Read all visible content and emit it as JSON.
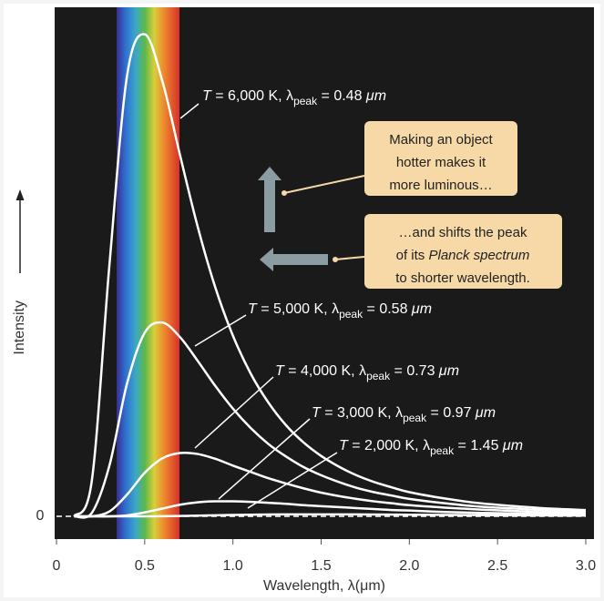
{
  "chart_data": {
    "type": "line",
    "xlabel": "Wavelength, λ(μm)",
    "ylabel": "Intensity",
    "xlim": [
      0,
      3.0
    ],
    "ylim": [
      0,
      1.05
    ],
    "xticks": [
      0,
      {
        "value": 0.5,
        "label": "0.5"
      },
      {
        "value": 1.0,
        "label": "1.0"
      },
      {
        "value": 1.5,
        "label": "1.5"
      },
      {
        "value": 2.0,
        "label": "2.0"
      },
      {
        "value": 2.5,
        "label": "2.5"
      },
      {
        "value": 3.0,
        "label": "3.0"
      }
    ],
    "yticks": [
      0
    ],
    "x": [
      0.1,
      0.2,
      0.3,
      0.4,
      0.5,
      0.6,
      0.7,
      0.8,
      0.9,
      1.0,
      1.1,
      1.2,
      1.3,
      1.4,
      1.5,
      1.6,
      1.7,
      1.8,
      1.9,
      2.0,
      2.2,
      2.4,
      2.6,
      2.8,
      3.0
    ],
    "series": [
      {
        "label": [
          "T",
          " = 6,000 K, λ",
          "peak",
          " = 0.48 ",
          "μm"
        ],
        "color": "#ffffff",
        "values": [
          0,
          0.073,
          0.52,
          0.912,
          0.998,
          0.901,
          0.748,
          0.6,
          0.474,
          0.374,
          0.296,
          0.236,
          0.189,
          0.153,
          0.125,
          0.103,
          0.085,
          0.071,
          0.06,
          0.05,
          0.037,
          0.027,
          0.021,
          0.016,
          0.013
        ]
      },
      {
        "label": [
          "T",
          " = 5,000 K, λ",
          "peak",
          " = 0.58 ",
          "μm"
        ],
        "color": "#ffffff",
        "values": [
          0,
          0.007,
          0.105,
          0.275,
          0.38,
          0.401,
          0.371,
          0.322,
          0.27,
          0.223,
          0.183,
          0.15,
          0.124,
          0.102,
          0.085,
          0.071,
          0.059,
          0.05,
          0.043,
          0.036,
          0.027,
          0.02,
          0.016,
          0.012,
          0.01
        ]
      },
      {
        "label": [
          "T",
          " = 4,000 K, λ",
          "peak",
          " = 0.73 ",
          "μm"
        ],
        "color": "#ffffff",
        "values": [
          0,
          0,
          0.01,
          0.045,
          0.09,
          0.12,
          0.131,
          0.129,
          0.119,
          0.105,
          0.092,
          0.079,
          0.068,
          0.058,
          0.049,
          0.042,
          0.036,
          0.031,
          0.027,
          0.023,
          0.018,
          0.014,
          0.011,
          0.008,
          0.007
        ]
      },
      {
        "label": [
          "T",
          " = 3,000 K, λ",
          "peak",
          " = 0.97 ",
          "μm"
        ],
        "color": "#ffffff",
        "values": [
          0,
          0,
          0,
          0.002,
          0.008,
          0.016,
          0.024,
          0.029,
          0.031,
          0.031,
          0.03,
          0.028,
          0.026,
          0.023,
          0.021,
          0.019,
          0.017,
          0.015,
          0.013,
          0.012,
          0.009,
          0.007,
          0.006,
          0.005,
          0.004
        ]
      },
      {
        "label": [
          "T",
          " = 2,000 K, λ",
          "peak",
          " = 1.45 ",
          "μm"
        ],
        "color": "#ffffff",
        "values": [
          0,
          0,
          0,
          0,
          0,
          0.0003,
          0.0008,
          0.0014,
          0.0021,
          0.0028,
          0.0034,
          0.0038,
          0.004,
          0.0041,
          0.0041,
          0.004,
          0.0039,
          0.0037,
          0.0035,
          0.0033,
          0.0029,
          0.0025,
          0.0021,
          0.0018,
          0.0015
        ]
      }
    ],
    "callouts": [
      {
        "lines": [
          [
            "Making an object"
          ],
          [
            "hotter makes it"
          ],
          [
            "more luminous…"
          ]
        ]
      },
      {
        "lines": [
          [
            "…and shifts the peak"
          ],
          [
            "of its ",
            "Planck spectrum"
          ],
          [
            "to shorter wavelength."
          ]
        ]
      }
    ]
  }
}
